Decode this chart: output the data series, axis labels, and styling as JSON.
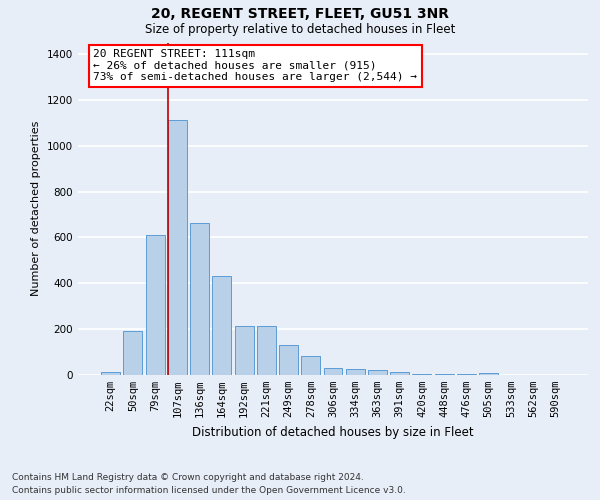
{
  "title": "20, REGENT STREET, FLEET, GU51 3NR",
  "subtitle": "Size of property relative to detached houses in Fleet",
  "xlabel": "Distribution of detached houses by size in Fleet",
  "ylabel": "Number of detached properties",
  "footer_line1": "Contains HM Land Registry data © Crown copyright and database right 2024.",
  "footer_line2": "Contains public sector information licensed under the Open Government Licence v3.0.",
  "annotation_line1": "20 REGENT STREET: 111sqm",
  "annotation_line2": "← 26% of detached houses are smaller (915)",
  "annotation_line3": "73% of semi-detached houses are larger (2,544) →",
  "bar_color": "#b8d0e8",
  "bar_edge_color": "#5b9bd5",
  "background_color": "#e8eef8",
  "annotation_box_color": "white",
  "annotation_box_edge": "red",
  "grid_color": "white",
  "vline_color": "#c00000",
  "categories": [
    "22sqm",
    "50sqm",
    "79sqm",
    "107sqm",
    "136sqm",
    "164sqm",
    "192sqm",
    "221sqm",
    "249sqm",
    "278sqm",
    "306sqm",
    "334sqm",
    "363sqm",
    "391sqm",
    "420sqm",
    "448sqm",
    "476sqm",
    "505sqm",
    "533sqm",
    "562sqm",
    "590sqm"
  ],
  "values": [
    15,
    190,
    610,
    1110,
    665,
    430,
    215,
    215,
    130,
    85,
    30,
    27,
    20,
    13,
    5,
    5,
    3,
    10,
    2,
    2,
    2
  ],
  "ylim": [
    0,
    1450
  ],
  "yticks": [
    0,
    200,
    400,
    600,
    800,
    1000,
    1200,
    1400
  ],
  "highlight_bar_index": 3,
  "figsize": [
    6.0,
    5.0
  ],
  "dpi": 100,
  "title_fontsize": 10,
  "subtitle_fontsize": 8.5,
  "ylabel_fontsize": 8,
  "xlabel_fontsize": 8.5,
  "tick_fontsize": 7.5,
  "annotation_fontsize": 8,
  "footer_fontsize": 6.5
}
